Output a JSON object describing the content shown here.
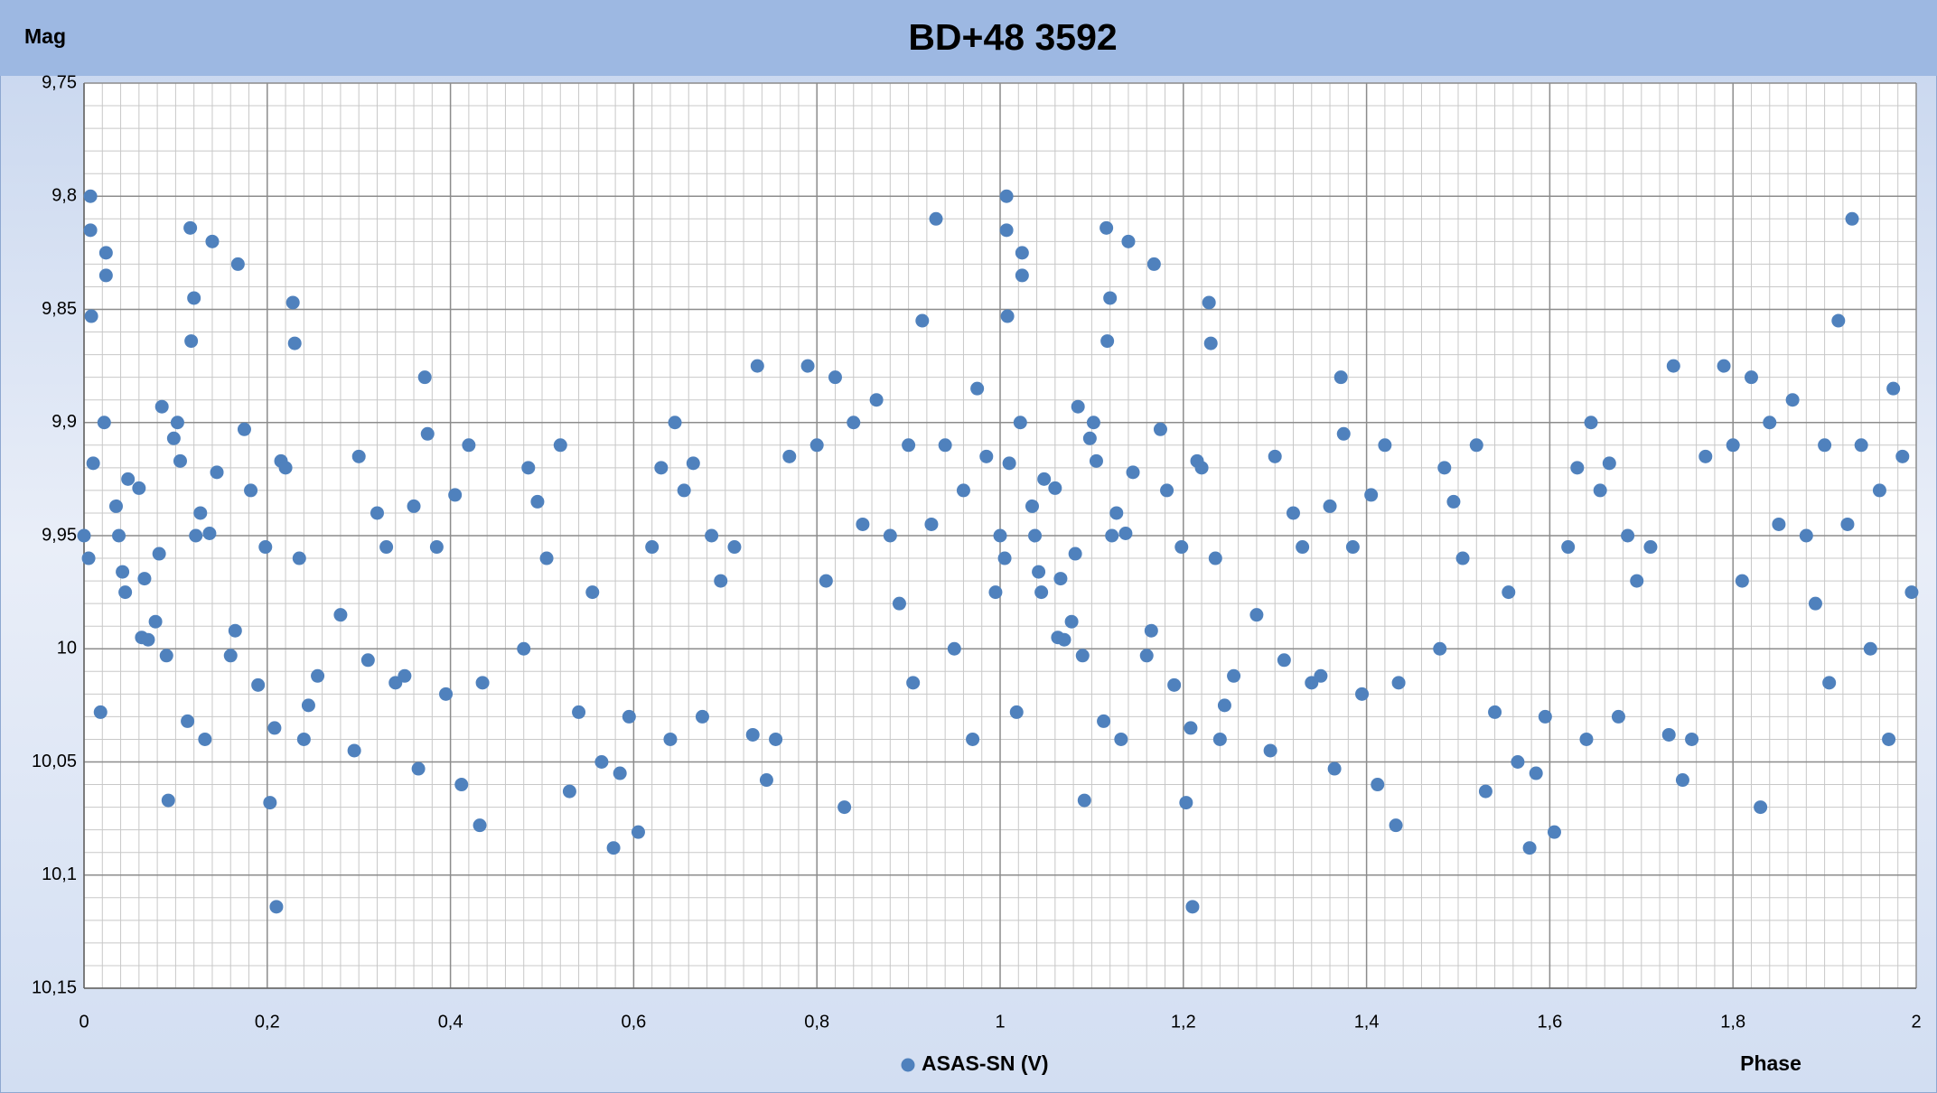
{
  "chart_data": {
    "type": "scatter",
    "title": "BD+48 3592",
    "y_label": "Mag",
    "x_label": "Phase",
    "xlim": [
      0,
      2
    ],
    "xticks": [
      0,
      {
        "value": 0.2,
        "label": "0,2"
      },
      {
        "value": 0.4,
        "label": "0,4"
      },
      {
        "value": 0.6,
        "label": "0,6"
      },
      {
        "value": 0.8,
        "label": "0,8"
      },
      1,
      {
        "value": 1.2,
        "label": "1,2"
      },
      {
        "value": 1.4,
        "label": "1,4"
      },
      {
        "value": 1.6,
        "label": "1,6"
      },
      {
        "value": 1.8,
        "label": "1,8"
      },
      2
    ],
    "ylim": [
      9.75,
      10.15
    ],
    "y_reversed": true,
    "yticks": [
      {
        "value": 9.75,
        "label": "9,75"
      },
      {
        "value": 9.8,
        "label": "9,8"
      },
      {
        "value": 9.85,
        "label": "9,85"
      },
      {
        "value": 9.9,
        "label": "9,9"
      },
      {
        "value": 9.95,
        "label": "9,95"
      },
      10,
      {
        "value": 10.05,
        "label": "10,05"
      },
      {
        "value": 10.1,
        "label": "10,1"
      },
      {
        "value": 10.15,
        "label": "10,15"
      }
    ],
    "grid": true,
    "legend": "bottom",
    "x": [
      0,
      0.005,
      0.007,
      0.007,
      0.008,
      0.01,
      0.018,
      0.022,
      0.024,
      0.024,
      0.035,
      0.038,
      0.042,
      0.045,
      0.048,
      0.06,
      0.063,
      0.066,
      0.07,
      0.078,
      0.082,
      0.085,
      0.09,
      0.092,
      0.098,
      0.102,
      0.105,
      0.113,
      0.116,
      0.117,
      0.12,
      0.122,
      0.127,
      0.132,
      0.137,
      0.14,
      0.145,
      0.16,
      0.165,
      0.168,
      0.175,
      0.182,
      0.19,
      0.198,
      0.203,
      0.208,
      0.21,
      0.215,
      0.22,
      0.228,
      0.23,
      0.235,
      0.24,
      0.245,
      0.255,
      0.28,
      0.295,
      0.3,
      0.31,
      0.32,
      0.33,
      0.34,
      0.35,
      0.36,
      0.365,
      0.372,
      0.375,
      0.385,
      0.395,
      0.405,
      0.412,
      0.42,
      0.432,
      0.435,
      0.48,
      0.485,
      0.495,
      0.505,
      0.52,
      0.53,
      0.54,
      0.555,
      0.565,
      0.578,
      0.585,
      0.595,
      0.605,
      0.62,
      0.63,
      0.64,
      0.645,
      0.655,
      0.665,
      0.675,
      0.685,
      0.695,
      0.71,
      0.73,
      0.735,
      0.745,
      0.755,
      0.77,
      0.79,
      0.8,
      0.81,
      0.82,
      0.83,
      0.84,
      0.85,
      0.865,
      0.88,
      0.89,
      0.9,
      0.905,
      0.915,
      0.925,
      0.93,
      0.94,
      0.95,
      0.96,
      0.97,
      0.975,
      0.985,
      0.995,
      1,
      1.005,
      1.007,
      1.007,
      1.008,
      1.01,
      1.018,
      1.022,
      1.024,
      1.024,
      1.035,
      1.038,
      1.042,
      1.045,
      1.048,
      1.06,
      1.063,
      1.066,
      1.07,
      1.078,
      1.082,
      1.085,
      1.09,
      1.092,
      1.098,
      1.102,
      1.105,
      1.113,
      1.116,
      1.117,
      1.12,
      1.122,
      1.127,
      1.132,
      1.137,
      1.14,
      1.145,
      1.16,
      1.165,
      1.168,
      1.175,
      1.182,
      1.19,
      1.198,
      1.203,
      1.208,
      1.21,
      1.215,
      1.22,
      1.228,
      1.23,
      1.235,
      1.24,
      1.245,
      1.255,
      1.28,
      1.295,
      1.3,
      1.31,
      1.32,
      1.33,
      1.34,
      1.35,
      1.36,
      1.365,
      1.372,
      1.375,
      1.385,
      1.395,
      1.405,
      1.412,
      1.42,
      1.432,
      1.435,
      1.48,
      1.485,
      1.495,
      1.505,
      1.52,
      1.53,
      1.54,
      1.555,
      1.565,
      1.578,
      1.585,
      1.595,
      1.605,
      1.62,
      1.63,
      1.64,
      1.645,
      1.655,
      1.665,
      1.675,
      1.685,
      1.695,
      1.71,
      1.73,
      1.735,
      1.745,
      1.755,
      1.77,
      1.79,
      1.8,
      1.81,
      1.82,
      1.83,
      1.84,
      1.85,
      1.865,
      1.88,
      1.89,
      1.9,
      1.905,
      1.915,
      1.925,
      1.93,
      1.94,
      1.95,
      1.96,
      1.97,
      1.975,
      1.985,
      1.995
    ],
    "series": [
      {
        "name": "ASAS-SN (V)",
        "color": "#4f81bd",
        "values": [
          9.95,
          9.96,
          9.815,
          9.8,
          9.853,
          9.918,
          10.028,
          9.9,
          9.825,
          9.835,
          9.937,
          9.95,
          9.966,
          9.975,
          9.925,
          9.929,
          9.995,
          9.969,
          9.996,
          9.988,
          9.958,
          9.893,
          10.003,
          10.067,
          9.907,
          9.9,
          9.917,
          10.032,
          9.814,
          9.864,
          9.845,
          9.95,
          9.94,
          10.04,
          9.949,
          9.82,
          9.922,
          10.003,
          9.992,
          9.83,
          9.903,
          9.93,
          10.016,
          9.955,
          10.068,
          10.035,
          10.114,
          9.917,
          9.92,
          9.847,
          9.865,
          9.96,
          10.04,
          10.025,
          10.012,
          9.985,
          10.045,
          9.915,
          10.005,
          9.94,
          9.955,
          10.015,
          10.012,
          9.937,
          10.053,
          9.88,
          9.905,
          9.955,
          10.02,
          9.932,
          10.06,
          9.91,
          10.078,
          10.015,
          10,
          9.92,
          9.935,
          9.96,
          9.91,
          10.063,
          10.028,
          9.975,
          10.05,
          10.088,
          10.055,
          10.03,
          10.081,
          9.955,
          9.92,
          10.04,
          9.9,
          9.93,
          9.918,
          10.03,
          9.95,
          9.97,
          9.955,
          10.038,
          9.875,
          10.058,
          10.04,
          9.915,
          9.875,
          9.91,
          9.97,
          9.88,
          10.07,
          9.9,
          9.945,
          9.89,
          9.95,
          9.98,
          9.91,
          10.015,
          9.855,
          9.945,
          9.81,
          9.91,
          10,
          9.93,
          10.04,
          9.885,
          9.915,
          9.975,
          9.95,
          9.96,
          9.815,
          9.8,
          9.853,
          9.918,
          10.028,
          9.9,
          9.825,
          9.835,
          9.937,
          9.95,
          9.966,
          9.975,
          9.925,
          9.929,
          9.995,
          9.969,
          9.996,
          9.988,
          9.958,
          9.893,
          10.003,
          10.067,
          9.907,
          9.9,
          9.917,
          10.032,
          9.814,
          9.864,
          9.845,
          9.95,
          9.94,
          10.04,
          9.949,
          9.82,
          9.922,
          10.003,
          9.992,
          9.83,
          9.903,
          9.93,
          10.016,
          9.955,
          10.068,
          10.035,
          10.114,
          9.917,
          9.92,
          9.847,
          9.865,
          9.96,
          10.04,
          10.025,
          10.012,
          9.985,
          10.045,
          9.915,
          10.005,
          9.94,
          9.955,
          10.015,
          10.012,
          9.937,
          10.053,
          9.88,
          9.905,
          9.955,
          10.02,
          9.932,
          10.06,
          9.91,
          10.078,
          10.015,
          10,
          9.92,
          9.935,
          9.96,
          9.91,
          10.063,
          10.028,
          9.975,
          10.05,
          10.088,
          10.055,
          10.03,
          10.081,
          9.955,
          9.92,
          10.04,
          9.9,
          9.93,
          9.918,
          10.03,
          9.95,
          9.97,
          9.955,
          10.038,
          9.875,
          10.058,
          10.04,
          9.915,
          9.875,
          9.91,
          9.97,
          9.88,
          10.07,
          9.9,
          9.945,
          9.89,
          9.95,
          9.98,
          9.91,
          10.015,
          9.855,
          9.945,
          9.81,
          9.91,
          10,
          9.93,
          10.04,
          9.885,
          9.915,
          9.975
        ]
      }
    ]
  }
}
